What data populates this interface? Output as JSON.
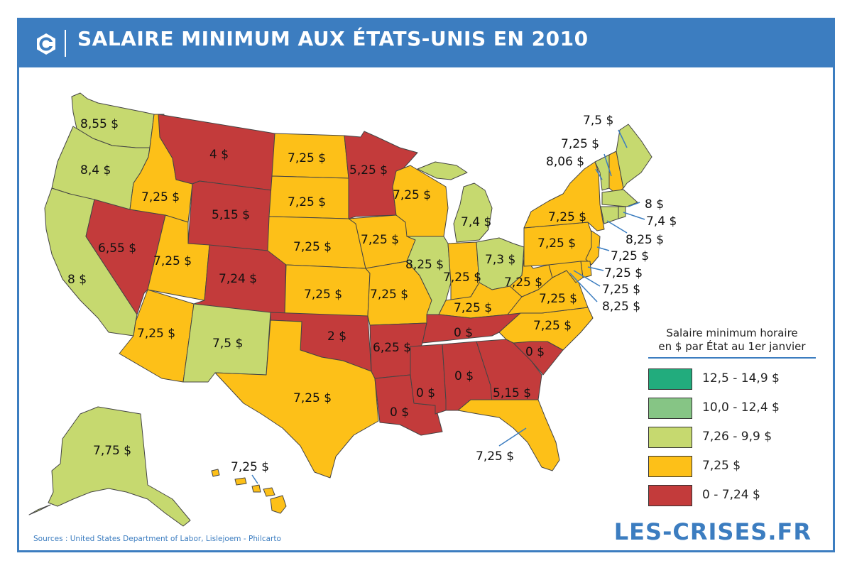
{
  "header": {
    "title": "SALAIRE MINIMUM AUX ÉTATS-UNIS EN 2010"
  },
  "colors": {
    "header_blue": "#3c7dc0",
    "bin_12_5_14_9": "#22ac7d",
    "bin_10_0_12_4": "#86c585",
    "bin_7_26_9_9": "#c6d96f",
    "bin_7_25": "#fdc018",
    "bin_0_7_24": "#c33b3b"
  },
  "legend": {
    "title_line1": "Salaire minimum horaire",
    "title_line2": "en $ par État au 1er janvier",
    "items": [
      {
        "label": "12,5 - 14,9 $",
        "color": "#22ac7d"
      },
      {
        "label": "10,0 - 12,4 $",
        "color": "#86c585"
      },
      {
        "label": "7,26 - 9,9 $",
        "color": "#c6d96f"
      },
      {
        "label": "7,25 $",
        "color": "#fdc018"
      },
      {
        "label": "0 - 7,24 $",
        "color": "#c33b3b"
      }
    ]
  },
  "states": {
    "WA": "8,55 $",
    "OR": "8,4 $",
    "CA": "8 $",
    "NV": "6,55 $",
    "ID": "7,25 $",
    "MT": "4 $",
    "WY": "5,15 $",
    "UT": "7,25 $",
    "AZ": "7,25 $",
    "CO": "7,24 $",
    "NM": "7,5 $",
    "ND": "7,25 $",
    "SD": "7,25 $",
    "NE": "7,25 $",
    "KS": "7,25 $",
    "OK": "2 $",
    "TX": "7,25 $",
    "MN": "5,25 $",
    "IA": "7,25 $",
    "MO": "7,25 $",
    "AR": "6,25 $",
    "LA": "0 $",
    "WI": "7,25 $",
    "IL": "8,25 $",
    "MI": "7,4 $",
    "IN": "7,25 $",
    "OH": "7,3 $",
    "KY": "7,25 $",
    "TN": "0 $",
    "MS": "0 $",
    "AL": "0 $",
    "GA": "5,15 $",
    "FL": "7,25 $",
    "SC": "0 $",
    "NC": "7,25 $",
    "VA": "7,25 $",
    "WV": "7,25 $",
    "PA": "7,25 $",
    "NY": "7,25 $",
    "ME": "7,5 $",
    "NH": "7,25 $",
    "VT": "8,06 $",
    "MA": "8 $",
    "RI": "7,4 $",
    "CT": "8,25 $",
    "NJ": "7,25 $",
    "DE": "7,25 $",
    "MD": "7,25 $",
    "DC": "8,25 $",
    "AK": "7,75 $",
    "HI": "7,25 $"
  },
  "footer": {
    "sources": "Sources : United States Department of Labor, Lislejoem - Philcarto",
    "brand": "LES-CRISES.FR"
  }
}
